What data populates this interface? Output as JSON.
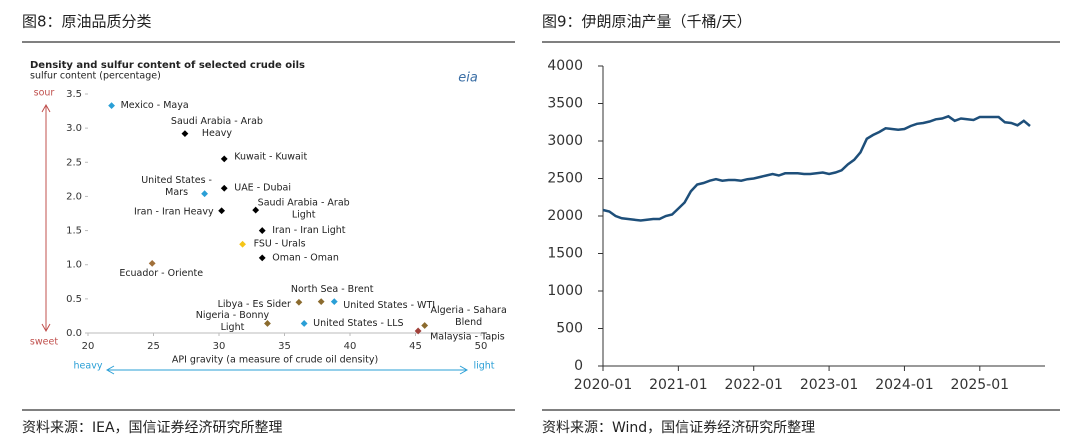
{
  "figures": [
    {
      "caption": "图8：原油品质分类",
      "source": "资料来源：IEA，国信证券经济研究所整理"
    },
    {
      "caption": "图9：伊朗原油产量（千桶/天）",
      "source": "资料来源：Wind，国信证券经济研究所整理"
    }
  ],
  "chart_data": [
    {
      "type": "scatter",
      "title": "Density and sulfur content of selected crude oils",
      "subtitle": "sulfur content (percentage)",
      "xlabel": "API gravity (a measure of crude oil density)",
      "logo": "eia",
      "annotations": {
        "sour": "sour",
        "sweet": "sweet",
        "heavy": "heavy",
        "light": "light"
      },
      "point_labels": [
        [
          "Mexico - Maya"
        ],
        [
          "Saudi Arabia - Arab",
          "Heavy"
        ],
        [
          "Kuwait - Kuwait"
        ],
        [
          "United States -",
          "Mars"
        ],
        [
          "UAE - Dubai"
        ],
        [
          "Iran - Iran Heavy"
        ],
        [
          "Saudi Arabia - Arab",
          "Light"
        ],
        [
          "Iran - Iran Light"
        ],
        [
          "FSU - Urals"
        ],
        [
          "Oman - Oman"
        ],
        [
          "Ecuador - Oriente"
        ],
        [
          "North Sea - Brent"
        ],
        [
          "United States - WTI"
        ],
        [
          "Libya - Es Sider"
        ],
        [
          "Nigeria - Bonny",
          "Light"
        ],
        [
          "United States - LLS"
        ],
        [
          "Algeria - Sahara",
          "Blend"
        ],
        [
          "Malaysia - Tapis"
        ]
      ],
      "x": [
        21.8,
        27.4,
        30.4,
        28.9,
        30.4,
        30.2,
        32.8,
        33.3,
        31.8,
        33.3,
        24.9,
        37.8,
        38.8,
        36.1,
        33.7,
        36.5,
        45.7,
        45.2
      ],
      "y": [
        3.33,
        2.92,
        2.55,
        2.04,
        2.12,
        1.79,
        1.8,
        1.5,
        1.3,
        1.1,
        1.02,
        0.46,
        0.46,
        0.45,
        0.14,
        0.14,
        0.11,
        0.03
      ],
      "colors": [
        "#2a9fd6",
        "#000000",
        "#000000",
        "#2a9fd6",
        "#000000",
        "#000000",
        "#000000",
        "#000000",
        "#f5c518",
        "#000000",
        "#a0703a",
        "#8b6b2e",
        "#2a9fd6",
        "#8b6b2e",
        "#8b6b2e",
        "#2a9fd6",
        "#8b6b2e",
        "#a0403a"
      ],
      "xlim": [
        20,
        50
      ],
      "xticks": [
        20,
        25,
        30,
        35,
        40,
        45,
        50
      ],
      "ylim": [
        0,
        3.5
      ],
      "yticks": [
        {
          "value": 0,
          "label": "0.0"
        },
        0.5,
        {
          "value": 1,
          "label": "1.0"
        },
        1.5,
        {
          "value": 2,
          "label": "2.0"
        },
        2.5,
        {
          "value": 3,
          "label": "3.0"
        },
        3.5
      ],
      "grid": false
    },
    {
      "type": "line",
      "x": [
        "2020-01",
        "2020-02",
        "2020-03",
        "2020-04",
        "2020-05",
        "2020-06",
        "2020-07",
        "2020-08",
        "2020-09",
        "2020-10",
        "2020-11",
        "2020-12",
        "2021-01",
        "2021-02",
        "2021-03",
        "2021-04",
        "2021-05",
        "2021-06",
        "2021-07",
        "2021-08",
        "2021-09",
        "2021-10",
        "2021-11",
        "2021-12",
        "2022-01",
        "2022-02",
        "2022-03",
        "2022-04",
        "2022-05",
        "2022-06",
        "2022-07",
        "2022-08",
        "2022-09",
        "2022-10",
        "2022-11",
        "2022-12",
        "2023-01",
        "2023-02",
        "2023-03",
        "2023-04",
        "2023-05",
        "2023-06",
        "2023-07",
        "2023-08",
        "2023-09",
        "2023-10",
        "2023-11",
        "2023-12",
        "2024-01",
        "2024-02",
        "2024-03",
        "2024-04",
        "2024-05",
        "2024-06",
        "2024-07",
        "2024-08",
        "2024-09",
        "2024-10",
        "2024-11",
        "2024-12",
        "2025-01",
        "2025-02",
        "2025-03",
        "2025-04",
        "2025-05",
        "2025-06",
        "2025-07",
        "2025-08",
        "2025-09"
      ],
      "series": [
        {
          "color": "#1e4f7a",
          "values": [
            2080,
            2060,
            2000,
            1970,
            1960,
            1950,
            1940,
            1950,
            1960,
            1960,
            2000,
            2020,
            2100,
            2180,
            2330,
            2420,
            2440,
            2470,
            2490,
            2470,
            2480,
            2480,
            2470,
            2490,
            2500,
            2520,
            2540,
            2560,
            2540,
            2570,
            2570,
            2570,
            2560,
            2560,
            2570,
            2580,
            2560,
            2580,
            2610,
            2690,
            2750,
            2850,
            3030,
            3080,
            3120,
            3170,
            3160,
            3150,
            3160,
            3200,
            3230,
            3240,
            3260,
            3290,
            3300,
            3330,
            3270,
            3300,
            3290,
            3280,
            3320,
            3320,
            3320,
            3320,
            3250,
            3240,
            3210,
            3270,
            3200
          ]
        }
      ],
      "xticks": [
        "2020-01",
        "2021-01",
        "2022-01",
        "2023-01",
        "2024-01",
        "2025-01"
      ],
      "ylim": [
        0,
        4000
      ],
      "yticks": [
        0,
        500,
        1000,
        1500,
        2000,
        2500,
        3000,
        3500,
        4000
      ],
      "grid": false
    }
  ]
}
